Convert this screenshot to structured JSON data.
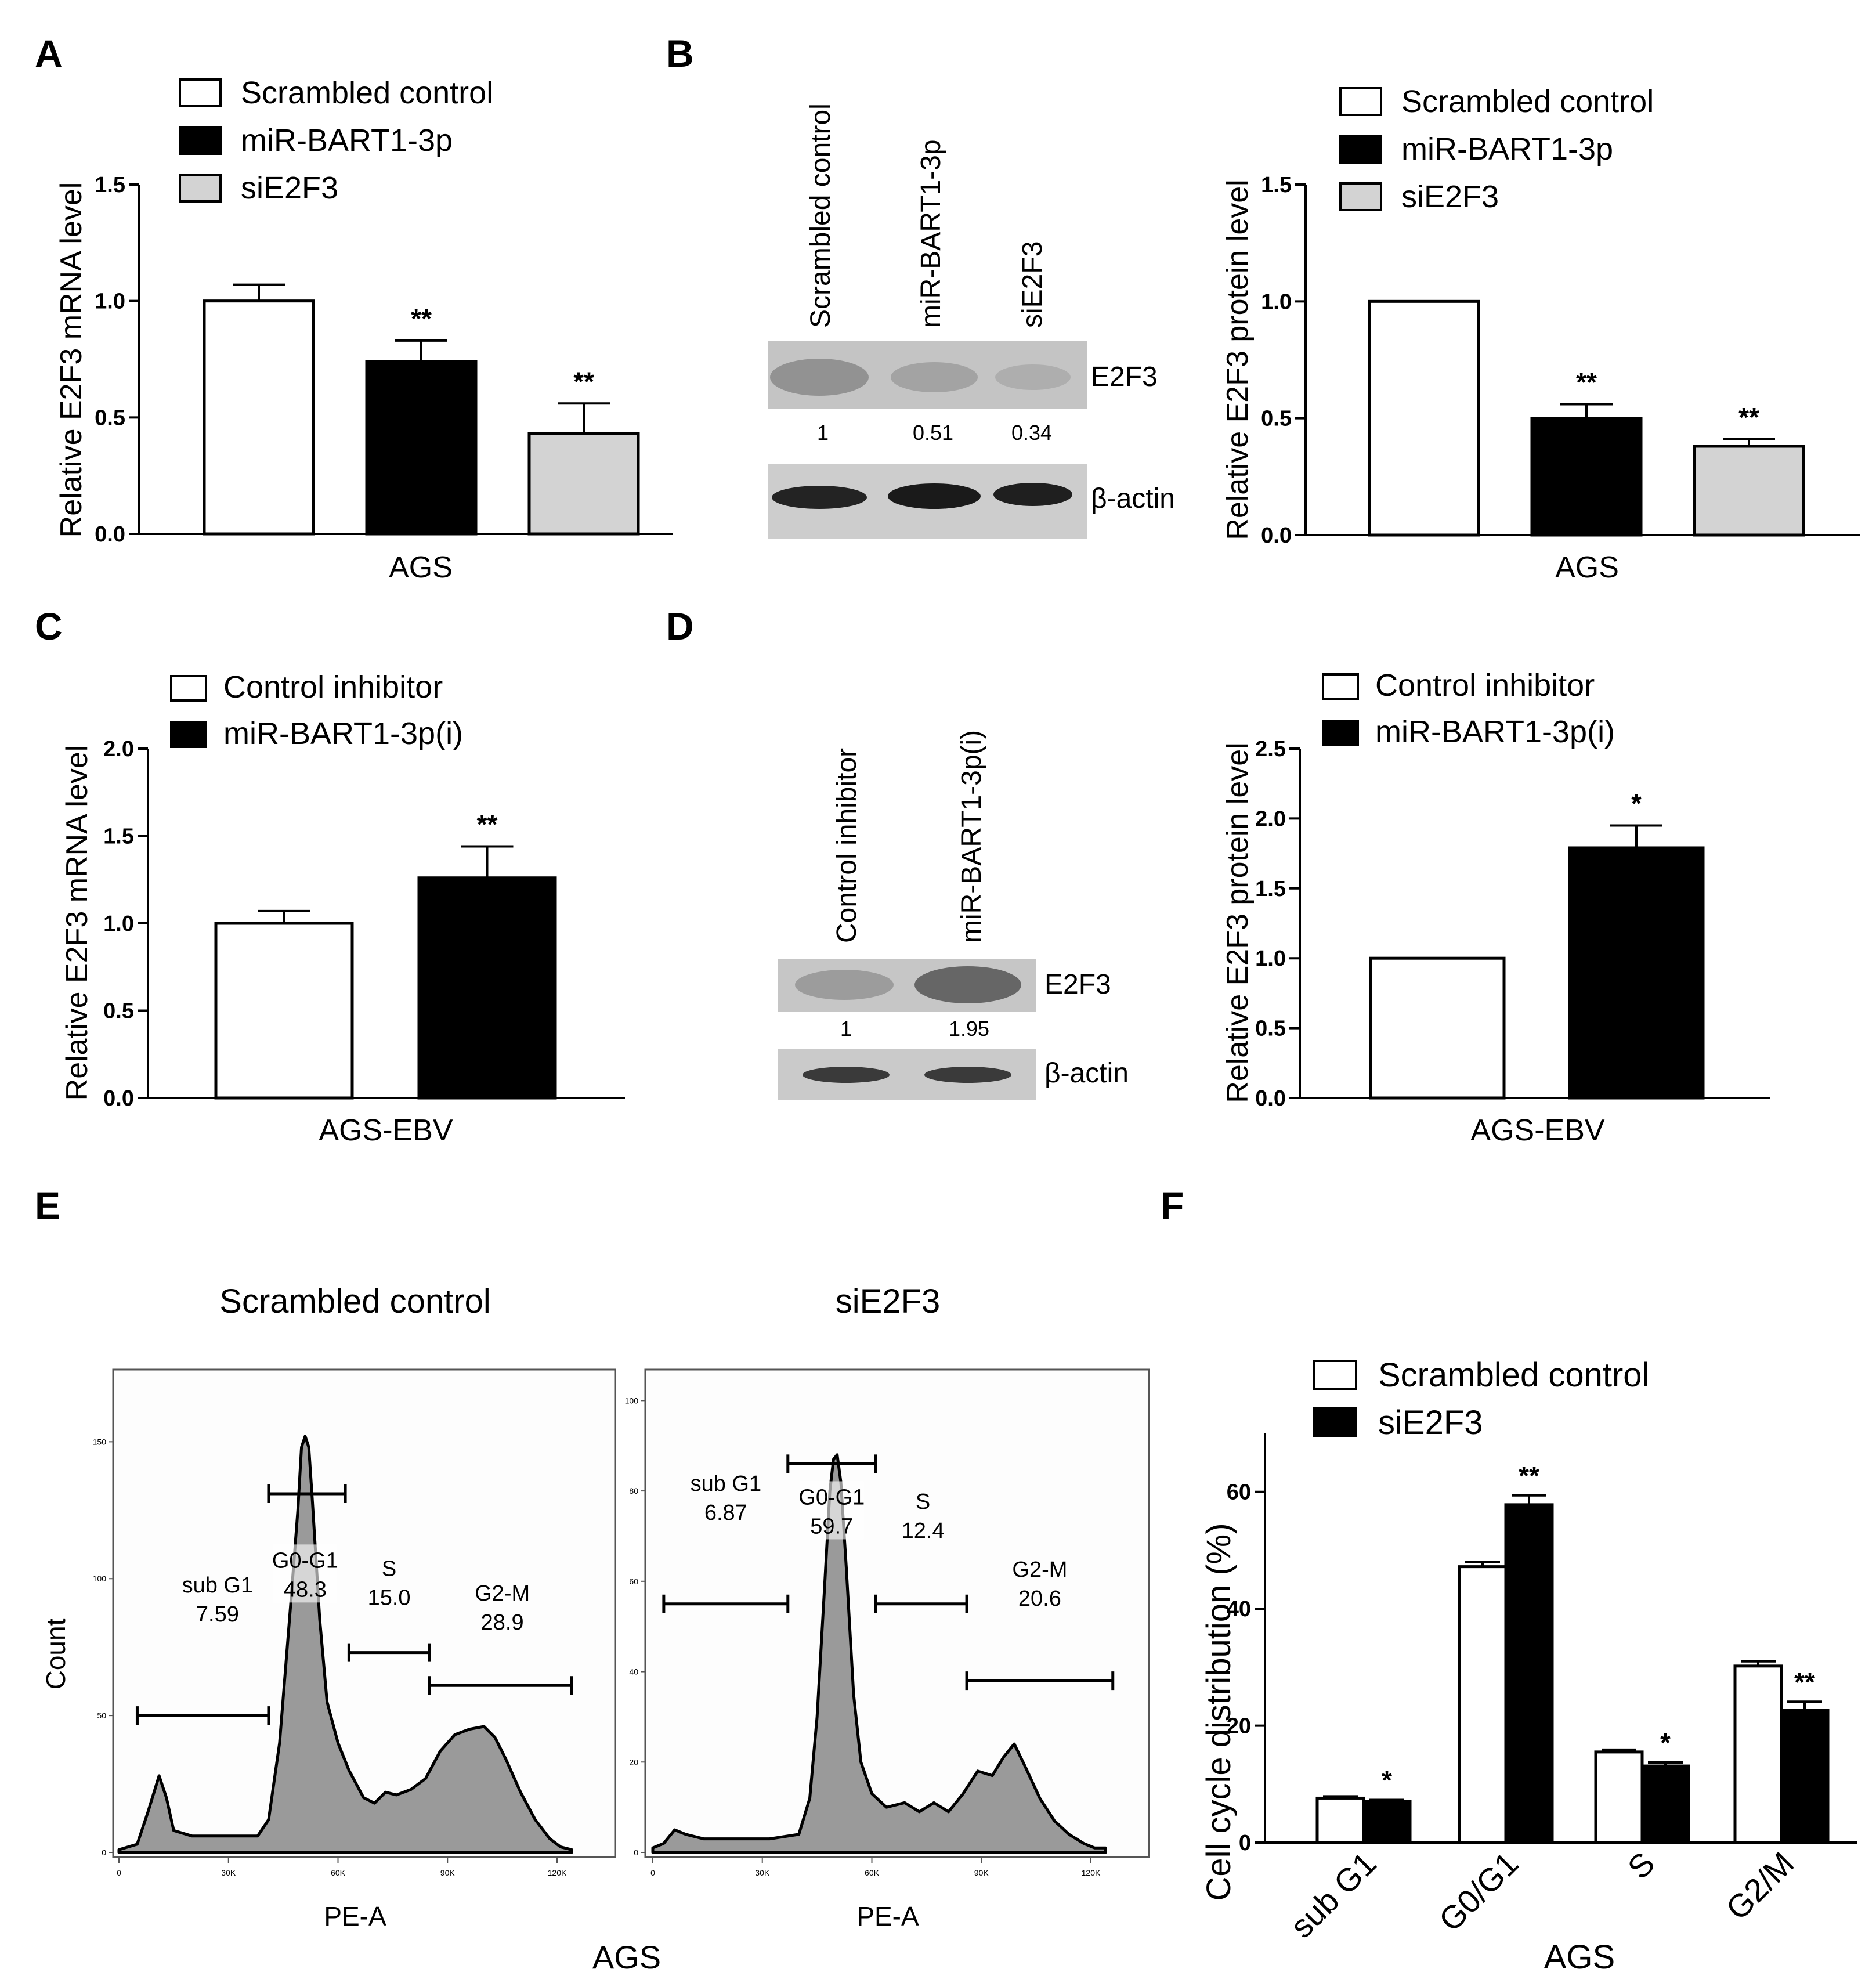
{
  "chart_data": [
    {
      "id": "A",
      "type": "bar",
      "panel_label": "A",
      "xlabel": "AGS",
      "ylabel": "Relative E2F3 mRNA level",
      "ylim": [
        0,
        1.5
      ],
      "yticks": [
        "0.0",
        "0.5",
        "1.0",
        "1.5"
      ],
      "legend_position": "top",
      "series": [
        {
          "name": "Scrambled control",
          "value": 1.0,
          "error": 0.07,
          "color": "#ffffff",
          "sig": ""
        },
        {
          "name": "miR-BART1-3p",
          "value": 0.74,
          "error": 0.09,
          "color": "#000000",
          "sig": "**"
        },
        {
          "name": "siE2F3",
          "value": 0.43,
          "error": 0.13,
          "color": "#d3d3d3",
          "sig": "**"
        }
      ]
    },
    {
      "id": "B",
      "type": "bar",
      "xlabel": "AGS",
      "ylabel": "Relative E2F3 protein level",
      "ylim": [
        0,
        1.5
      ],
      "yticks": [
        "0.0",
        "0.5",
        "1.0",
        "1.5"
      ],
      "legend_position": "top",
      "series": [
        {
          "name": "Scrambled control",
          "value": 1.0,
          "error": 0,
          "color": "#ffffff",
          "sig": ""
        },
        {
          "name": "miR-BART1-3p",
          "value": 0.5,
          "error": 0.06,
          "color": "#000000",
          "sig": "**"
        },
        {
          "name": "siE2F3",
          "value": 0.38,
          "error": 0.03,
          "color": "#d3d3d3",
          "sig": "**"
        }
      ]
    },
    {
      "id": "C",
      "type": "bar",
      "panel_label": "C",
      "xlabel": "AGS-EBV",
      "ylabel": "Relative E2F3 mRNA level",
      "ylim": [
        0,
        2.0
      ],
      "yticks": [
        "0.0",
        "0.5",
        "1.0",
        "1.5",
        "2.0"
      ],
      "legend_position": "top",
      "series": [
        {
          "name": "Control inhibitor",
          "value": 1.0,
          "error": 0.07,
          "color": "#ffffff",
          "sig": ""
        },
        {
          "name": "miR-BART1-3p(i)",
          "value": 1.26,
          "error": 0.18,
          "color": "#000000",
          "sig": "**"
        }
      ]
    },
    {
      "id": "D",
      "type": "bar",
      "xlabel": "AGS-EBV",
      "ylabel": "Relative E2F3 protein level",
      "ylim": [
        0,
        2.5
      ],
      "yticks": [
        "0.0",
        "0.5",
        "1.0",
        "1.5",
        "2.0",
        "2.5"
      ],
      "legend_position": "top",
      "series": [
        {
          "name": "Control inhibitor",
          "value": 1.0,
          "error": 0,
          "color": "#ffffff",
          "sig": ""
        },
        {
          "name": "miR-BART1-3p(i)",
          "value": 1.79,
          "error": 0.16,
          "color": "#000000",
          "sig": "*"
        }
      ]
    },
    {
      "id": "F",
      "type": "bar",
      "panel_label": "F",
      "xlabel": "AGS",
      "ylabel": "Cell cycle distribution (%)",
      "ylim": [
        0,
        70
      ],
      "yticks": [
        "0",
        "20",
        "40",
        "60"
      ],
      "yticks_values": [
        0,
        20,
        40,
        60
      ],
      "categories": [
        "sub G1",
        "G0/G1",
        "S",
        "G2/M"
      ],
      "legend_position": "top",
      "series": [
        {
          "name": "Scrambled control",
          "color": "#ffffff",
          "values": [
            7.6,
            47.2,
            15.5,
            30.2
          ],
          "errors": [
            0.3,
            0.8,
            0.4,
            0.8
          ],
          "sig": [
            "",
            "",
            "",
            ""
          ]
        },
        {
          "name": "siE2F3",
          "color": "#000000",
          "values": [
            7.0,
            57.8,
            13.1,
            22.6
          ],
          "errors": [
            0.3,
            1.6,
            0.6,
            1.5
          ],
          "sig": [
            "*",
            "**",
            "*",
            "**"
          ]
        }
      ]
    }
  ],
  "blots": [
    {
      "id": "B",
      "panel_label": "B",
      "lanes": [
        "Scrambled control",
        "miR-BART1-3p",
        "siE2F3"
      ],
      "target": "E2F3",
      "loading": "β-actin",
      "quant": [
        "1",
        "0.51",
        "0.34"
      ]
    },
    {
      "id": "D",
      "panel_label": "D",
      "lanes": [
        "Control inhibitor",
        "miR-BART1-3p(i)"
      ],
      "target": "E2F3",
      "loading": "β-actin",
      "quant": [
        "1",
        "1.95"
      ]
    }
  ],
  "flow": {
    "panel_label": "E",
    "group_label": "AGS",
    "ylabel": "Count",
    "xlabel": "PE-A",
    "xticks": [
      "0",
      "30K",
      "60K",
      "90K",
      "120K"
    ],
    "histograms": [
      {
        "title": "Scrambled control",
        "yticks": [
          "0",
          "50",
          "100",
          "150"
        ],
        "ymax": 170,
        "gates": [
          {
            "name": "sub G1",
            "value": "7.59"
          },
          {
            "name": "G0-G1",
            "value": "48.3"
          },
          {
            "name": "S",
            "value": "15.0"
          },
          {
            "name": "G2-M",
            "value": "28.9"
          }
        ]
      },
      {
        "title": "siE2F3",
        "yticks": [
          "0",
          "20",
          "40",
          "60",
          "80",
          "100"
        ],
        "ymax": 103,
        "gates": [
          {
            "name": "sub G1",
            "value": "6.87"
          },
          {
            "name": "G0-G1",
            "value": "59.7"
          },
          {
            "name": "S",
            "value": "12.4"
          },
          {
            "name": "G2-M",
            "value": "20.6"
          }
        ]
      }
    ]
  }
}
